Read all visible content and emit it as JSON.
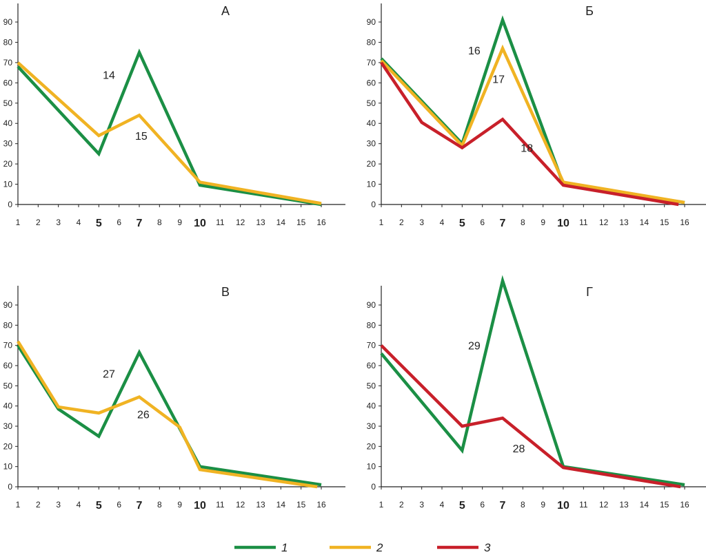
{
  "colors": {
    "1": "#1b8f45",
    "2": "#f0b323",
    "3": "#c8202a"
  },
  "legend": [
    {
      "key": "1",
      "label": "1"
    },
    {
      "key": "2",
      "label": "2"
    },
    {
      "key": "3",
      "label": "3"
    }
  ],
  "chart_data": [
    {
      "type": "line",
      "title": "А",
      "x": [
        1,
        5,
        7,
        10,
        16
      ],
      "xticks": [
        1,
        2,
        3,
        4,
        5,
        6,
        7,
        8,
        9,
        10,
        11,
        12,
        13,
        14,
        15,
        16
      ],
      "xticks_bold": [
        5,
        7,
        10
      ],
      "yticks": [
        0,
        10,
        20,
        30,
        40,
        50,
        60,
        70,
        80,
        90
      ],
      "ylim": [
        0,
        100
      ],
      "series": [
        {
          "name": "1",
          "x": [
            1,
            5,
            7,
            10,
            16
          ],
          "values": [
            68,
            25,
            75,
            9.5,
            0
          ]
        },
        {
          "name": "2",
          "x": [
            1,
            5,
            7,
            10,
            16
          ],
          "values": [
            70,
            34,
            44,
            11,
            0.5
          ]
        }
      ],
      "annotations": [
        {
          "text": "14",
          "x": 5.5,
          "y": 62
        },
        {
          "text": "15",
          "x": 7.1,
          "y": 32
        }
      ]
    },
    {
      "type": "line",
      "title": "Б",
      "xticks": [
        1,
        2,
        3,
        4,
        5,
        6,
        7,
        8,
        9,
        10,
        11,
        12,
        13,
        14,
        15,
        16
      ],
      "xticks_bold": [
        5,
        7,
        10
      ],
      "yticks": [
        0,
        10,
        20,
        30,
        40,
        50,
        60,
        70,
        80,
        90
      ],
      "ylim": [
        0,
        100
      ],
      "series": [
        {
          "name": "1",
          "x": [
            1,
            5,
            7,
            10,
            16
          ],
          "values": [
            72,
            30,
            91,
            10,
            1
          ]
        },
        {
          "name": "2",
          "x": [
            1,
            5,
            7,
            10,
            16
          ],
          "values": [
            71,
            29,
            77,
            11,
            1
          ]
        },
        {
          "name": "3",
          "x": [
            1,
            3,
            5,
            7,
            10,
            15.7
          ],
          "values": [
            70,
            40.5,
            28,
            42,
            9.5,
            0
          ]
        }
      ],
      "annotations": [
        {
          "text": "16",
          "x": 5.6,
          "y": 74
        },
        {
          "text": "17",
          "x": 6.8,
          "y": 60
        },
        {
          "text": "18",
          "x": 8.2,
          "y": 26
        }
      ]
    },
    {
      "type": "line",
      "title": "В",
      "xticks": [
        1,
        2,
        3,
        4,
        5,
        6,
        7,
        8,
        9,
        10,
        11,
        12,
        13,
        14,
        15,
        16
      ],
      "xticks_bold": [
        5,
        7,
        10
      ],
      "yticks": [
        0,
        10,
        20,
        30,
        40,
        50,
        60,
        70,
        80,
        90
      ],
      "ylim": [
        0,
        100
      ],
      "series": [
        {
          "name": "1",
          "x": [
            1,
            3,
            5,
            7,
            10,
            16
          ],
          "values": [
            70,
            38.5,
            25,
            66.5,
            10,
            1
          ]
        },
        {
          "name": "2",
          "x": [
            1,
            3,
            5,
            7,
            9,
            10,
            15.8
          ],
          "values": [
            72,
            39.5,
            36.5,
            44.5,
            29.5,
            8.5,
            0
          ]
        }
      ],
      "annotations": [
        {
          "text": "27",
          "x": 5.5,
          "y": 54
        },
        {
          "text": "26",
          "x": 7.2,
          "y": 34
        }
      ]
    },
    {
      "type": "line",
      "title": "Г",
      "xticks": [
        1,
        2,
        3,
        4,
        5,
        6,
        7,
        8,
        9,
        10,
        11,
        12,
        13,
        14,
        15,
        16
      ],
      "xticks_bold": [
        5,
        7,
        10
      ],
      "yticks": [
        0,
        10,
        20,
        30,
        40,
        50,
        60,
        70,
        80,
        90
      ],
      "ylim": [
        0,
        100
      ],
      "series": [
        {
          "name": "1",
          "x": [
            1,
            5,
            7,
            10,
            16
          ],
          "values": [
            66,
            18,
            102,
            10,
            1
          ]
        },
        {
          "name": "3",
          "x": [
            1,
            5,
            7,
            10,
            15.8
          ],
          "values": [
            70,
            30,
            34,
            9.5,
            0
          ]
        }
      ],
      "annotations": [
        {
          "text": "29",
          "x": 5.6,
          "y": 68
        },
        {
          "text": "28",
          "x": 7.8,
          "y": 17
        }
      ]
    }
  ]
}
